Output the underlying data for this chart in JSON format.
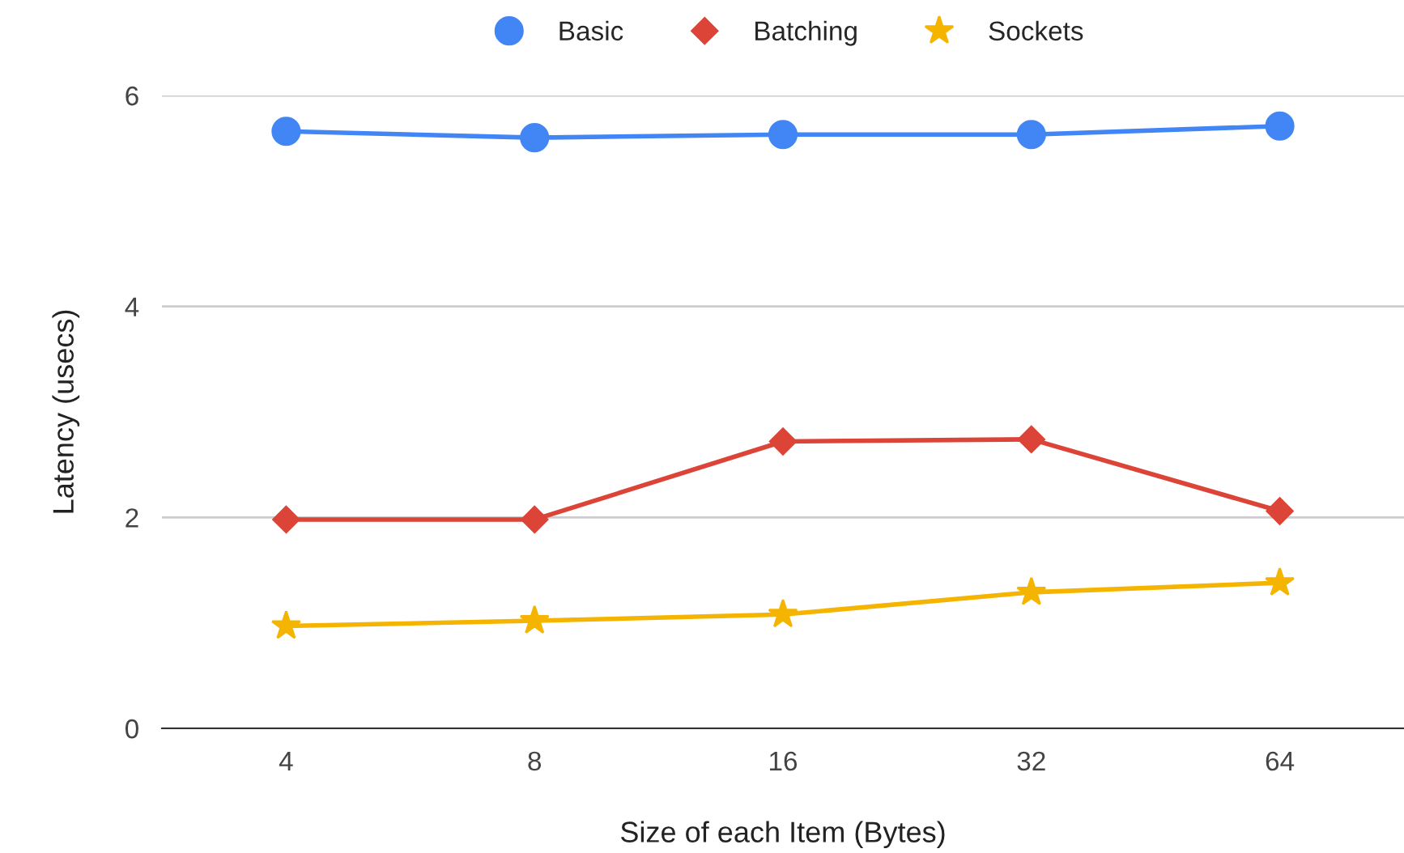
{
  "chart_data": {
    "type": "line",
    "xlabel": "Size of each Item (Bytes)",
    "ylabel": "Latency (usecs)",
    "categories": [
      "4",
      "8",
      "16",
      "32",
      "64"
    ],
    "series": [
      {
        "name": "Basic",
        "color": "#4285f4",
        "marker": "circle",
        "values": [
          5.66,
          5.6,
          5.63,
          5.63,
          5.71
        ]
      },
      {
        "name": "Batching",
        "color": "#db4437",
        "marker": "diamond",
        "values": [
          1.98,
          1.98,
          2.72,
          2.74,
          2.06
        ]
      },
      {
        "name": "Sockets",
        "color": "#f4b400",
        "marker": "star",
        "values": [
          0.97,
          1.02,
          1.08,
          1.29,
          1.38
        ]
      }
    ],
    "ylim": [
      0,
      6
    ],
    "yticks": [
      0,
      2,
      4,
      6
    ],
    "grid": "y",
    "legend": "top",
    "line_style": "solid"
  }
}
